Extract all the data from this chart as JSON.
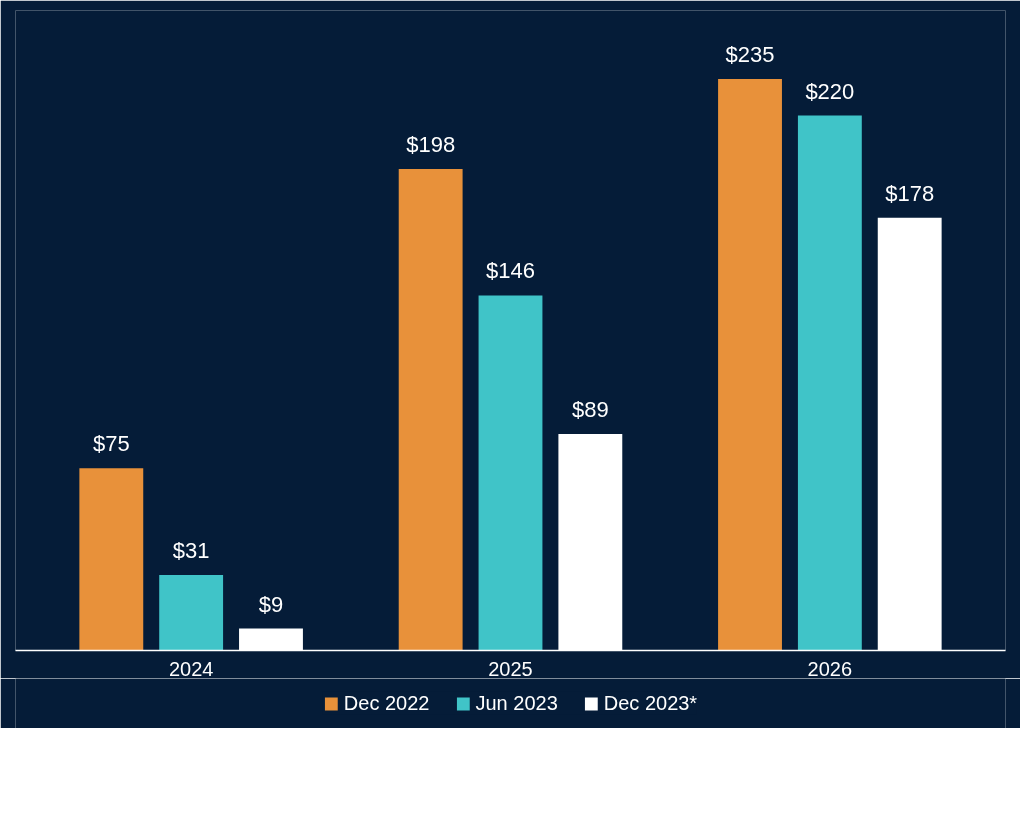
{
  "chart_data": {
    "type": "bar",
    "categories": [
      "2024",
      "2025",
      "2026"
    ],
    "series": [
      {
        "name": "Dec 2022",
        "color": "#e8913a",
        "values": [
          75,
          198,
          235
        ],
        "value_labels": [
          "$75",
          "$198",
          "$235"
        ]
      },
      {
        "name": "Jun 2023",
        "color": "#40c4c8",
        "values": [
          31,
          146,
          220
        ],
        "value_labels": [
          "$31",
          "$146",
          "$220"
        ]
      },
      {
        "name": "Dec 2023*",
        "color": "#ffffff",
        "values": [
          9,
          89,
          178
        ],
        "value_labels": [
          "$9",
          "$89",
          "$178"
        ]
      }
    ],
    "grid": false,
    "legend": "bottom"
  }
}
